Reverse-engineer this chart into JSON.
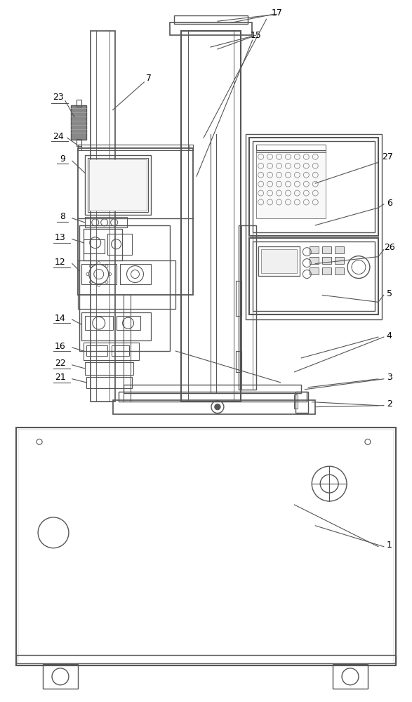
{
  "bg_color": "#ffffff",
  "lc": "#555555",
  "lw": 1.0,
  "fig_width": 5.87,
  "fig_height": 10.0
}
